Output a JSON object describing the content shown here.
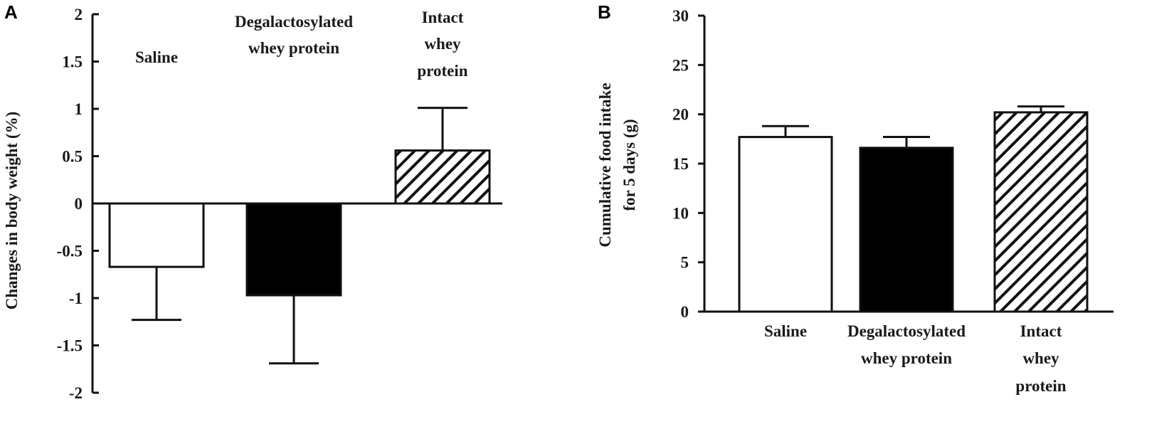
{
  "panels": {
    "a": {
      "label": "A"
    },
    "b": {
      "label": "B"
    }
  },
  "chart_data": [
    {
      "panel": "A",
      "type": "bar",
      "title": "",
      "xlabel": "",
      "ylabel": "Changes in body weight (%)",
      "ylim": [
        -2,
        2
      ],
      "yticks": [
        "2",
        "1.5",
        "1",
        "0.5",
        "0",
        "-0.5",
        "-1",
        "-1.5",
        "-2"
      ],
      "grid": false,
      "legend": "none",
      "categories": [
        "Saline",
        "Degalactosylated whey protein",
        "Intact whey protein"
      ],
      "category_label_lines": [
        [
          "Saline"
        ],
        [
          "Degalactosylated",
          "whey protein"
        ],
        [
          "Intact",
          "whey",
          "protein"
        ]
      ],
      "values": [
        -0.67,
        -0.97,
        0.56
      ],
      "error": [
        0.56,
        0.72,
        0.45
      ],
      "fills": [
        "white",
        "black",
        "hatched"
      ]
    },
    {
      "panel": "B",
      "type": "bar",
      "title": "",
      "xlabel": "",
      "ylabel": "Cumulative food intake for 5 days (g)",
      "ylabel_lines": [
        "Cumulative  food intake",
        "for 5 days (g)"
      ],
      "ylim": [
        0,
        30
      ],
      "yticks": [
        "30",
        "25",
        "20",
        "15",
        "10",
        "5",
        "0"
      ],
      "grid": false,
      "legend": "none",
      "categories": [
        "Saline",
        "Degalactosylated whey protein",
        "Intact whey protein"
      ],
      "category_label_lines": [
        [
          "Saline"
        ],
        [
          "Degalactosylated",
          "whey protein"
        ],
        [
          "Intact",
          "whey",
          "protein"
        ]
      ],
      "values": [
        17.7,
        16.6,
        20.2
      ],
      "error": [
        1.1,
        1.1,
        0.6
      ],
      "fills": [
        "white",
        "black",
        "hatched"
      ]
    }
  ],
  "colors": {
    "ink": "#111111",
    "bar_dark": "#000000",
    "bar_light": "#ffffff"
  }
}
